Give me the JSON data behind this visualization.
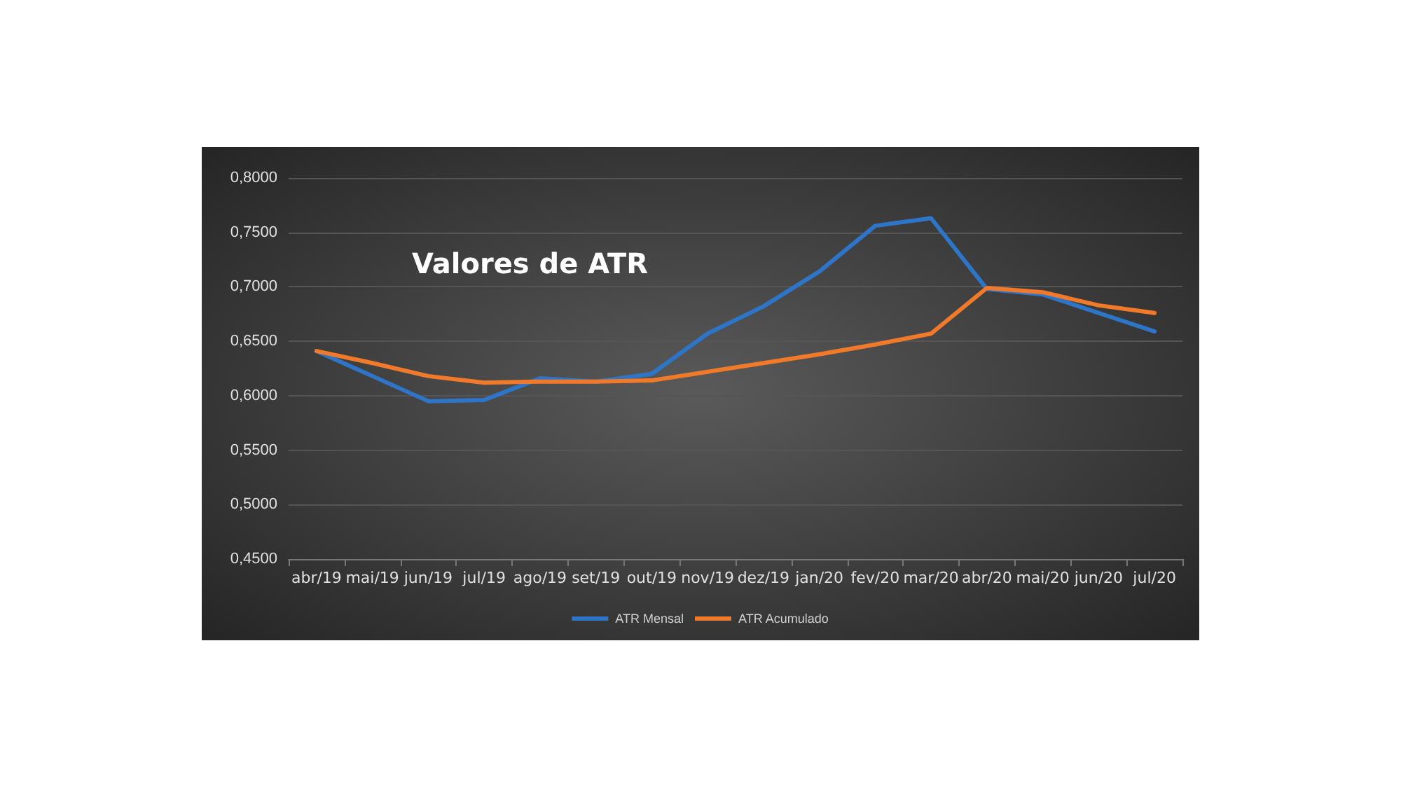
{
  "chart_data": {
    "type": "line",
    "title": "Valores de ATR",
    "categories": [
      "abr/19",
      "mai/19",
      "jun/19",
      "jul/19",
      "ago/19",
      "set/19",
      "out/19",
      "nov/19",
      "dez/19",
      "jan/20",
      "fev/20",
      "mar/20",
      "abr/20",
      "mai/20",
      "jun/20",
      "jul/20"
    ],
    "series": [
      {
        "name": "ATR Mensal",
        "color": "#2e75c8",
        "values": [
          0.641,
          0.618,
          0.595,
          0.596,
          0.616,
          0.613,
          0.62,
          0.657,
          0.682,
          0.714,
          0.756,
          0.763,
          0.698,
          0.693,
          0.676,
          0.659
        ]
      },
      {
        "name": "ATR Acumulado",
        "color": "#f07a2a",
        "values": [
          0.641,
          0.63,
          0.618,
          0.612,
          0.613,
          0.613,
          0.614,
          0.622,
          0.63,
          0.638,
          0.647,
          0.657,
          0.699,
          0.695,
          0.683,
          0.676
        ]
      }
    ],
    "ylim": [
      0.45,
      0.8
    ],
    "yticks": [
      {
        "value": 0.45,
        "label": "0,4500"
      },
      {
        "value": 0.5,
        "label": "0,5000"
      },
      {
        "value": 0.55,
        "label": "0,5500"
      },
      {
        "value": 0.6,
        "label": "0,6000"
      },
      {
        "value": 0.65,
        "label": "0,6500"
      },
      {
        "value": 0.7,
        "label": "0,7000"
      },
      {
        "value": 0.75,
        "label": "0,7500"
      },
      {
        "value": 0.8,
        "label": "0,8000"
      }
    ],
    "grid": "y",
    "legend": "bottom",
    "marker": "none",
    "line_style": "solid"
  }
}
